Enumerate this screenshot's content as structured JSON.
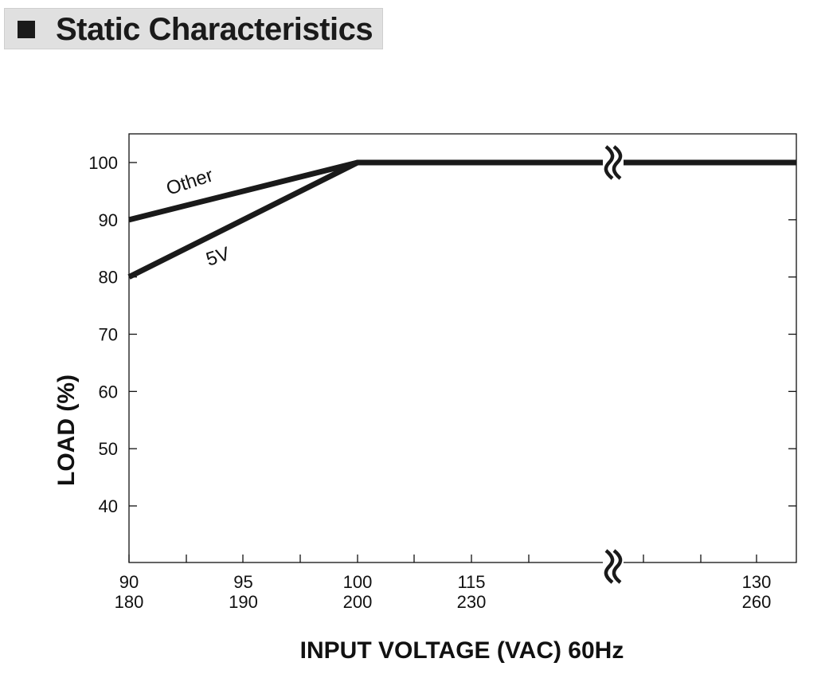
{
  "header": {
    "title": "Static Characteristics"
  },
  "chart_data": {
    "type": "line",
    "xlabel": "INPUT VOLTAGE (VAC) 60Hz",
    "ylabel": "LOAD (%)",
    "y_ticks": [
      "100",
      "90",
      "80",
      "70",
      "60",
      "50",
      "40"
    ],
    "ylim": [
      30,
      105
    ],
    "x_ticks": [
      {
        "top": "90",
        "bottom": "180"
      },
      {
        "top": "95",
        "bottom": "190"
      },
      {
        "top": "100",
        "bottom": "200"
      },
      {
        "top": "115",
        "bottom": "230"
      },
      {
        "top": "130",
        "bottom": "260"
      }
    ],
    "x_axis_break": true,
    "series": [
      {
        "name": "Other",
        "x": [
          90,
          100,
          130
        ],
        "y": [
          90,
          100,
          100
        ]
      },
      {
        "name": "5V",
        "x": [
          90,
          100,
          130
        ],
        "y": [
          80,
          100,
          100
        ]
      }
    ]
  }
}
